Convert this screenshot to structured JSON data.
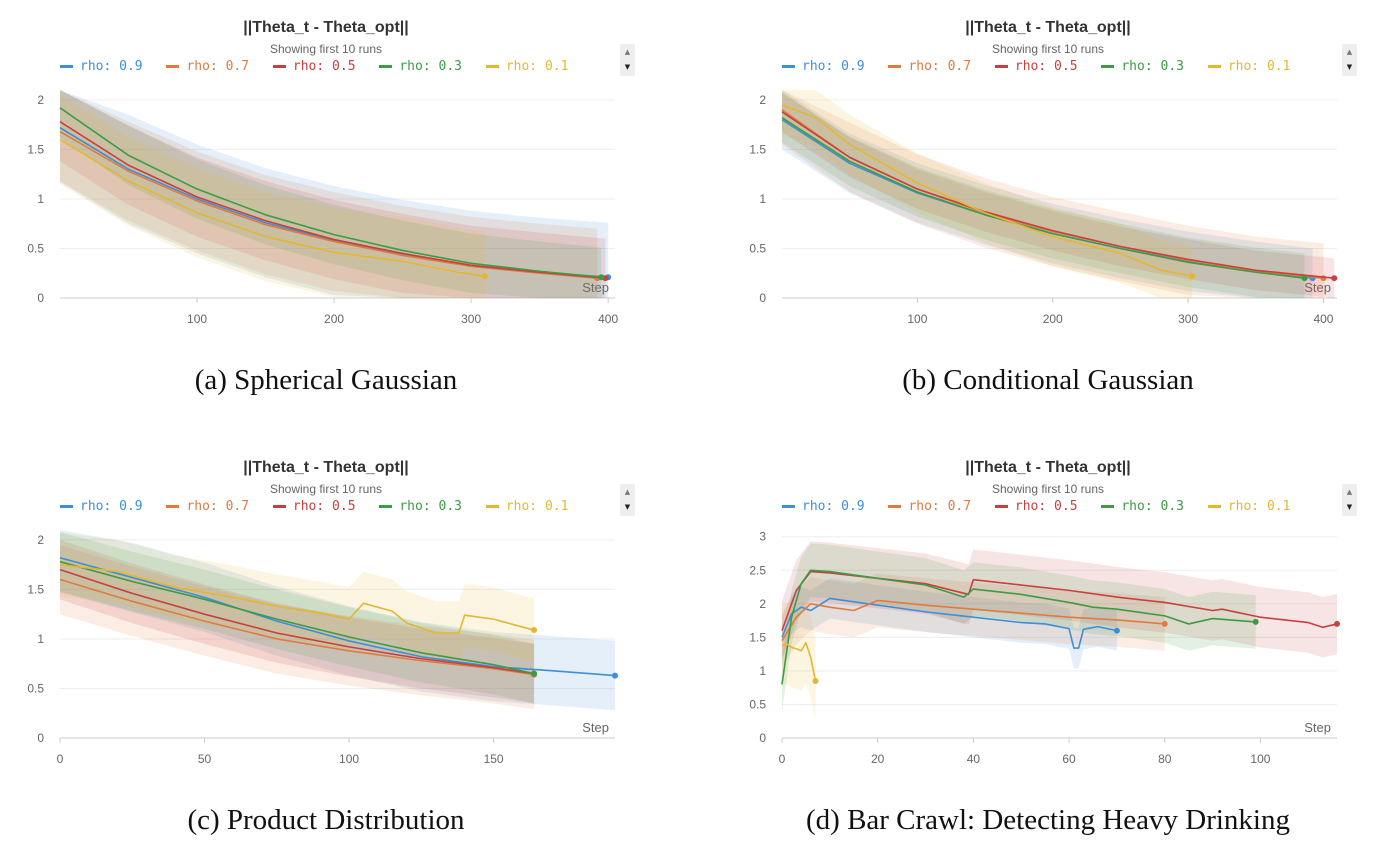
{
  "colors": {
    "rho_0_9": "#3d8fd8",
    "rho_0_7": "#e07b40",
    "rho_0_5": "#c8403f",
    "rho_0_3": "#3c9c45",
    "rho_0_1": "#e4b732",
    "grid": "#eeeeee",
    "axis": "#cccccc",
    "tick_text": "#666666"
  },
  "panels": [
    {
      "title": "||Theta_t - Theta_opt||",
      "subtitle": "Showing first 10 runs",
      "caption": "(a) Spherical Gaussian",
      "scroll_up_icon": "▲",
      "scroll_down_icon": "▼",
      "legend": [
        "rho: 0.9",
        "rho: 0.7",
        "rho: 0.5",
        "rho: 0.3",
        "rho: 0.1"
      ]
    },
    {
      "title": "||Theta_t - Theta_opt||",
      "subtitle": "Showing first 10 runs",
      "caption": "(b) Conditional Gaussian",
      "scroll_up_icon": "▲",
      "scroll_down_icon": "▼",
      "legend": [
        "rho: 0.9",
        "rho: 0.7",
        "rho: 0.5",
        "rho: 0.3",
        "rho: 0.1"
      ]
    },
    {
      "title": "||Theta_t - Theta_opt||",
      "subtitle": "Showing first 10 runs",
      "caption": "(c) Product Distribution",
      "scroll_up_icon": "▲",
      "scroll_down_icon": "▼",
      "legend": [
        "rho: 0.9",
        "rho: 0.7",
        "rho: 0.5",
        "rho: 0.3",
        "rho: 0.1"
      ]
    },
    {
      "title": "||Theta_t - Theta_opt||",
      "subtitle": "Showing first 10 runs",
      "caption": "(d) Bar Crawl: Detecting Heavy Drinking",
      "scroll_up_icon": "▲",
      "scroll_down_icon": "▼",
      "legend": [
        "rho: 0.9",
        "rho: 0.7",
        "rho: 0.5",
        "rho: 0.3",
        "rho: 0.1"
      ]
    }
  ],
  "chart_data": [
    {
      "type": "line",
      "title": "||Theta_t - Theta_opt||",
      "xlabel": "Step",
      "ylabel": "",
      "xlim": [
        0,
        405
      ],
      "ylim": [
        0,
        2.1
      ],
      "x_ticks": [
        100,
        200,
        300,
        400
      ],
      "y_ticks": [
        0,
        0.5,
        1,
        1.5,
        2
      ],
      "y_tick_labels": [
        "0",
        "0.5",
        "1",
        "1.5",
        "2"
      ],
      "series": [
        {
          "name": "rho: 0.9",
          "x": [
            0,
            50,
            100,
            150,
            200,
            250,
            300,
            350,
            400
          ],
          "y": [
            1.72,
            1.3,
            1.0,
            0.76,
            0.58,
            0.44,
            0.33,
            0.26,
            0.21
          ],
          "band": 0.55
        },
        {
          "name": "rho: 0.7",
          "x": [
            0,
            50,
            100,
            150,
            200,
            250,
            300,
            350,
            392
          ],
          "y": [
            1.68,
            1.28,
            0.98,
            0.74,
            0.57,
            0.43,
            0.32,
            0.25,
            0.2
          ],
          "band": 0.5
        },
        {
          "name": "rho: 0.5",
          "x": [
            0,
            50,
            100,
            150,
            200,
            250,
            300,
            350,
            398
          ],
          "y": [
            1.78,
            1.34,
            1.02,
            0.78,
            0.59,
            0.45,
            0.33,
            0.26,
            0.2
          ],
          "band": 0.4
        },
        {
          "name": "rho: 0.3",
          "x": [
            0,
            50,
            100,
            150,
            200,
            250,
            300,
            350,
            395
          ],
          "y": [
            1.92,
            1.44,
            1.1,
            0.84,
            0.64,
            0.48,
            0.35,
            0.27,
            0.21
          ],
          "band": 0.3
        },
        {
          "name": "rho: 0.1",
          "x": [
            0,
            50,
            100,
            150,
            200,
            250,
            290,
            310
          ],
          "y": [
            1.6,
            1.18,
            0.86,
            0.62,
            0.46,
            0.37,
            0.26,
            0.22
          ],
          "band": 0.45
        }
      ]
    },
    {
      "type": "line",
      "title": "||Theta_t - Theta_opt||",
      "xlabel": "Step",
      "ylabel": "",
      "xlim": [
        0,
        410
      ],
      "ylim": [
        0,
        2.1
      ],
      "x_ticks": [
        100,
        200,
        300,
        400
      ],
      "y_ticks": [
        0,
        0.5,
        1,
        1.5,
        2
      ],
      "y_tick_labels": [
        "0",
        "0.5",
        "1",
        "1.5",
        "2"
      ],
      "series": [
        {
          "name": "rho: 0.9",
          "x": [
            0,
            50,
            100,
            150,
            200,
            250,
            300,
            350,
            392
          ],
          "y": [
            1.8,
            1.36,
            1.06,
            0.84,
            0.65,
            0.5,
            0.37,
            0.27,
            0.2
          ],
          "band": 0.3
        },
        {
          "name": "rho: 0.7",
          "x": [
            0,
            50,
            100,
            150,
            200,
            250,
            300,
            350,
            400
          ],
          "y": [
            1.9,
            1.42,
            1.1,
            0.86,
            0.67,
            0.52,
            0.38,
            0.27,
            0.2
          ],
          "band": 0.35
        },
        {
          "name": "rho: 0.5",
          "x": [
            0,
            50,
            100,
            150,
            200,
            250,
            300,
            350,
            408
          ],
          "y": [
            1.88,
            1.42,
            1.1,
            0.87,
            0.68,
            0.52,
            0.39,
            0.28,
            0.2
          ],
          "band": 0.2
        },
        {
          "name": "rho: 0.3",
          "x": [
            0,
            50,
            100,
            150,
            200,
            250,
            300,
            350,
            386
          ],
          "y": [
            1.82,
            1.38,
            1.07,
            0.84,
            0.65,
            0.5,
            0.36,
            0.26,
            0.2
          ],
          "band": 0.25
        },
        {
          "name": "rho: 0.1",
          "x": [
            0,
            25,
            50,
            100,
            150,
            200,
            250,
            280,
            303
          ],
          "y": [
            1.95,
            1.82,
            1.55,
            1.16,
            0.86,
            0.62,
            0.45,
            0.28,
            0.22
          ],
          "band": 0.3
        }
      ]
    },
    {
      "type": "line",
      "title": "||Theta_t - Theta_opt||",
      "xlabel": "Step",
      "ylabel": "",
      "xlim": [
        0,
        192
      ],
      "ylim": [
        0,
        2.1
      ],
      "x_ticks": [
        0,
        50,
        100,
        150
      ],
      "y_ticks": [
        0,
        0.5,
        1,
        1.5,
        2
      ],
      "y_tick_labels": [
        "0",
        "0.5",
        "1",
        "1.5",
        "2"
      ],
      "series": [
        {
          "name": "rho: 0.9",
          "x": [
            0,
            25,
            50,
            75,
            100,
            125,
            150,
            170,
            192
          ],
          "y": [
            1.82,
            1.62,
            1.42,
            1.18,
            0.98,
            0.82,
            0.72,
            0.68,
            0.63
          ],
          "band": 0.35
        },
        {
          "name": "rho: 0.7",
          "x": [
            0,
            25,
            50,
            75,
            100,
            125,
            150,
            164
          ],
          "y": [
            1.6,
            1.38,
            1.18,
            1.0,
            0.88,
            0.78,
            0.7,
            0.64
          ],
          "band": 0.35
        },
        {
          "name": "rho: 0.5",
          "x": [
            0,
            25,
            50,
            75,
            100,
            125,
            150,
            164
          ],
          "y": [
            1.7,
            1.46,
            1.25,
            1.06,
            0.92,
            0.8,
            0.71,
            0.65
          ],
          "band": 0.3
        },
        {
          "name": "rho: 0.3",
          "x": [
            0,
            25,
            50,
            75,
            100,
            125,
            150,
            164
          ],
          "y": [
            1.78,
            1.58,
            1.4,
            1.2,
            1.02,
            0.86,
            0.74,
            0.65
          ],
          "band": 0.3
        },
        {
          "name": "rho: 0.1",
          "x": [
            0,
            20,
            40,
            60,
            75,
            90,
            100,
            105,
            115,
            120,
            130,
            138,
            140,
            150,
            160,
            164
          ],
          "y": [
            1.75,
            1.68,
            1.52,
            1.42,
            1.33,
            1.26,
            1.2,
            1.36,
            1.28,
            1.16,
            1.06,
            1.06,
            1.24,
            1.2,
            1.12,
            1.09
          ],
          "band": 0.32
        }
      ]
    },
    {
      "type": "line",
      "title": "||Theta_t - Theta_opt||",
      "xlabel": "Step",
      "ylabel": "",
      "xlim": [
        0,
        116
      ],
      "ylim": [
        0,
        3.1
      ],
      "x_ticks": [
        0,
        20,
        40,
        60,
        80,
        100
      ],
      "y_ticks": [
        0,
        0.5,
        1,
        1.5,
        2,
        2.5,
        3
      ],
      "y_tick_labels": [
        "0",
        "0.5",
        "1",
        "1.5",
        "2",
        "2.5",
        "3"
      ],
      "series": [
        {
          "name": "rho: 0.9",
          "x": [
            0,
            2,
            4,
            6,
            10,
            20,
            30,
            40,
            50,
            55,
            60,
            61,
            62,
            63,
            66,
            70
          ],
          "y": [
            1.5,
            1.85,
            1.95,
            1.9,
            2.08,
            1.98,
            1.88,
            1.8,
            1.72,
            1.7,
            1.63,
            1.34,
            1.34,
            1.62,
            1.66,
            1.6
          ],
          "band": 0.3
        },
        {
          "name": "rho: 0.7",
          "x": [
            0,
            3,
            6,
            10,
            15,
            20,
            30,
            40,
            50,
            60,
            70,
            80
          ],
          "y": [
            1.45,
            1.8,
            2.0,
            1.95,
            1.9,
            2.05,
            1.98,
            1.92,
            1.86,
            1.8,
            1.76,
            1.7
          ],
          "band": 0.4
        },
        {
          "name": "rho: 0.5",
          "x": [
            0,
            3,
            6,
            10,
            20,
            30,
            39,
            40,
            50,
            60,
            70,
            80,
            90,
            92,
            100,
            110,
            113,
            116
          ],
          "y": [
            1.6,
            2.2,
            2.48,
            2.46,
            2.38,
            2.3,
            2.14,
            2.36,
            2.28,
            2.2,
            2.1,
            2.02,
            1.9,
            1.92,
            1.8,
            1.72,
            1.65,
            1.7
          ],
          "band": 0.45
        },
        {
          "name": "rho: 0.3",
          "x": [
            0,
            2,
            4,
            6,
            10,
            20,
            30,
            38,
            40,
            50,
            60,
            65,
            70,
            80,
            85,
            90,
            99
          ],
          "y": [
            0.8,
            1.8,
            2.3,
            2.5,
            2.48,
            2.38,
            2.28,
            2.1,
            2.22,
            2.14,
            2.02,
            1.95,
            1.92,
            1.82,
            1.7,
            1.78,
            1.73
          ],
          "band": 0.4
        },
        {
          "name": "rho: 0.1",
          "x": [
            0,
            1,
            2,
            3,
            4,
            5,
            6,
            7
          ],
          "y": [
            1.38,
            1.4,
            1.35,
            1.33,
            1.3,
            1.42,
            1.2,
            0.85
          ],
          "band": 0.6
        }
      ]
    }
  ]
}
